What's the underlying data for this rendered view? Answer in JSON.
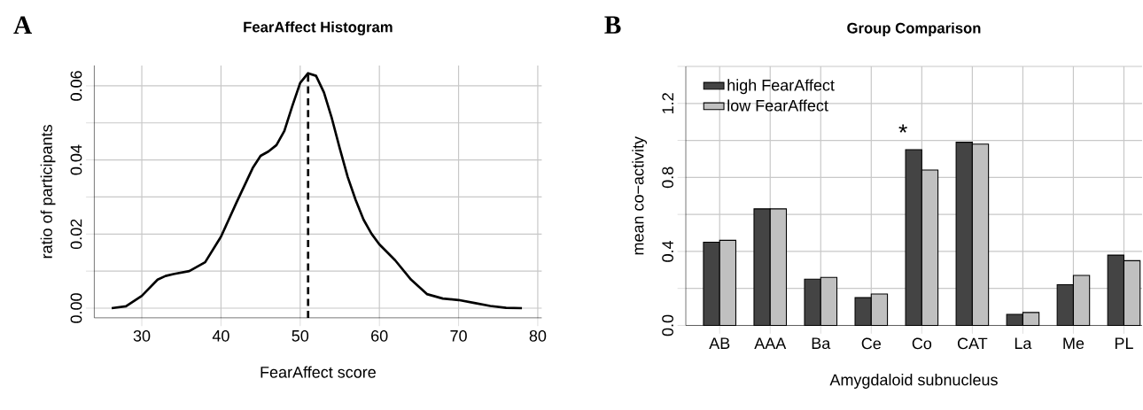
{
  "chart_data": [
    {
      "type": "line",
      "title": "FearAffect Histogram",
      "xlabel": "FearAffect score",
      "ylabel": "ratio of participants",
      "annotations": [
        "A"
      ],
      "x": [
        26.2,
        28,
        30,
        32,
        33,
        34,
        36,
        38,
        40,
        42,
        44,
        45,
        46,
        47,
        48,
        49,
        50,
        51,
        52,
        53,
        54,
        55,
        56,
        57,
        58,
        59,
        60,
        62,
        64,
        66,
        68,
        70,
        72,
        74,
        76,
        78
      ],
      "series": [
        {
          "color": "#000000",
          "values": [
            0.0,
            0.0005,
            0.0033,
            0.0077,
            0.0087,
            0.0092,
            0.01,
            0.0124,
            0.0193,
            0.0287,
            0.0378,
            0.0411,
            0.0423,
            0.044,
            0.0478,
            0.0545,
            0.0608,
            0.0634,
            0.0627,
            0.0582,
            0.0512,
            0.0431,
            0.0354,
            0.0292,
            0.0239,
            0.0201,
            0.0172,
            0.0129,
            0.0077,
            0.0038,
            0.0026,
            0.0022,
            0.0014,
            0.0006,
            0.0001,
            0.0
          ]
        }
      ],
      "xlim": [
        24,
        80.5
      ],
      "ylim": [
        -0.0026,
        0.0655
      ],
      "xticks": [
        30,
        40,
        50,
        60,
        70,
        80
      ],
      "yticks": [
        {
          "value": 0,
          "label": "0.00"
        },
        {
          "value": 0.01,
          "label": null
        },
        {
          "value": 0.02,
          "label": "0.02"
        },
        {
          "value": 0.03,
          "label": null
        },
        {
          "value": 0.04,
          "label": "0.04"
        },
        {
          "value": 0.05,
          "label": null
        },
        {
          "value": 0.06,
          "label": "0.06"
        }
      ],
      "grid": true,
      "ref_lines": [
        {
          "axis": "x",
          "value": 51,
          "color": "#000000",
          "line_style": "dashed"
        }
      ]
    },
    {
      "type": "bar",
      "title": "Group Comparison",
      "xlabel": "Amygdaloid subnucleus",
      "ylabel": "mean co−activity",
      "annotations": [
        "B",
        "*"
      ],
      "categories": [
        "AB",
        "AAA",
        "Ba",
        "Ce",
        "Co",
        "CAT",
        "La",
        "Me",
        "PL"
      ],
      "series": [
        {
          "name": "high FearAffect",
          "color": "#444444",
          "values": [
            0.45,
            0.63,
            0.25,
            0.15,
            0.95,
            0.99,
            0.06,
            0.22,
            0.38
          ]
        },
        {
          "name": "low FearAffect",
          "color": "#c0c0c0",
          "values": [
            0.46,
            0.63,
            0.26,
            0.17,
            0.84,
            0.98,
            0.07,
            0.27,
            0.35
          ]
        }
      ],
      "ylim": [
        0,
        1.4
      ],
      "yticks": [
        {
          "value": 0,
          "label": "0.0"
        },
        {
          "value": 0.2,
          "label": null
        },
        {
          "value": 0.4,
          "label": "0.4"
        },
        {
          "value": 0.6,
          "label": null
        },
        {
          "value": 0.8,
          "label": "0.8"
        },
        {
          "value": 1.0,
          "label": null
        },
        {
          "value": 1.2,
          "label": "1.2"
        },
        {
          "value": 1.4,
          "label": null
        }
      ],
      "grid": true,
      "legend": "top left"
    }
  ]
}
